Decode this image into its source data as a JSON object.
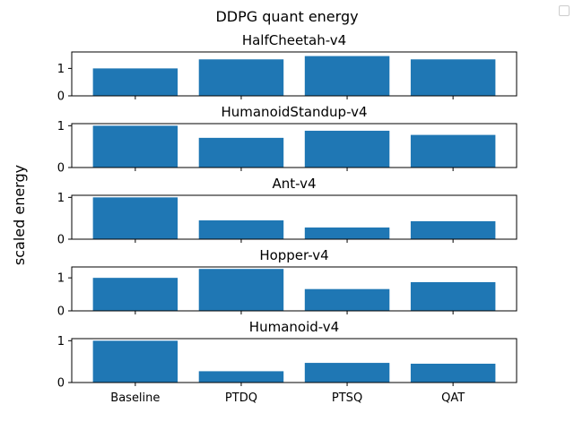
{
  "figure": {
    "suptitle": "DDPG quant energy",
    "ylabel": "scaled energy"
  },
  "chart_data": [
    {
      "type": "bar",
      "title": "HalfCheetah-v4",
      "categories": [
        "Baseline",
        "PTDQ",
        "PTSQ",
        "QAT"
      ],
      "values": [
        1.0,
        1.33,
        1.45,
        1.33
      ],
      "ylim": [
        0,
        1.6
      ],
      "yticks": [
        0,
        1
      ],
      "xlabel": "",
      "ylabel": "",
      "show_xticklabels": false,
      "color": "#1f77b4"
    },
    {
      "type": "bar",
      "title": "HumanoidStandup-v4",
      "categories": [
        "Baseline",
        "PTDQ",
        "PTSQ",
        "QAT"
      ],
      "values": [
        1.0,
        0.71,
        0.88,
        0.78
      ],
      "ylim": [
        0,
        1.05
      ],
      "yticks": [
        0,
        1
      ],
      "xlabel": "",
      "ylabel": "",
      "show_xticklabels": false,
      "color": "#1f77b4"
    },
    {
      "type": "bar",
      "title": "Ant-v4",
      "categories": [
        "Baseline",
        "PTDQ",
        "PTSQ",
        "QAT"
      ],
      "values": [
        1.0,
        0.45,
        0.28,
        0.43
      ],
      "ylim": [
        0,
        1.05
      ],
      "yticks": [
        0,
        1
      ],
      "xlabel": "",
      "ylabel": "",
      "show_xticklabels": false,
      "color": "#1f77b4"
    },
    {
      "type": "bar",
      "title": "Hopper-v4",
      "categories": [
        "Baseline",
        "PTDQ",
        "PTSQ",
        "QAT"
      ],
      "values": [
        1.0,
        1.27,
        0.66,
        0.87
      ],
      "ylim": [
        0,
        1.33
      ],
      "yticks": [
        0,
        1
      ],
      "xlabel": "",
      "ylabel": "",
      "show_xticklabels": false,
      "color": "#1f77b4"
    },
    {
      "type": "bar",
      "title": "Humanoid-v4",
      "categories": [
        "Baseline",
        "PTDQ",
        "PTSQ",
        "QAT"
      ],
      "values": [
        1.0,
        0.27,
        0.47,
        0.45
      ],
      "ylim": [
        0,
        1.05
      ],
      "yticks": [
        0,
        1
      ],
      "xlabel": "",
      "ylabel": "",
      "show_xticklabels": true,
      "color": "#1f77b4"
    }
  ]
}
